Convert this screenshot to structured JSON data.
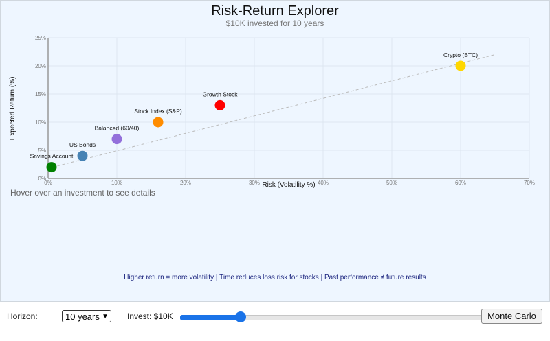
{
  "header": {
    "title": "Risk-Return Explorer",
    "subtitle": "$10K invested for 10 years"
  },
  "hint": "Hover over an investment to see details",
  "footnote": "Higher return = more volatility  |  Time reduces loss risk for stocks  |  Past performance ≠ future results",
  "controls": {
    "horizon_label": "Horizon:",
    "horizon_value": "10 years",
    "invest_label": "Invest: $10K",
    "invest_slider_fraction": 0.2,
    "monte_carlo_label": "Monte Carlo"
  },
  "chart_data": {
    "type": "scatter",
    "xlabel": "Risk (Volatility %)",
    "ylabel": "Expected Return (%)",
    "xlim": [
      0,
      70
    ],
    "ylim": [
      0,
      25
    ],
    "x_ticks": [
      0,
      10,
      20,
      30,
      40,
      50,
      60,
      70
    ],
    "y_ticks": [
      0,
      5,
      10,
      15,
      20,
      25
    ],
    "x_tick_labels": [
      "0%",
      "10%",
      "20%",
      "30%",
      "40%",
      "50%",
      "60%",
      "70%"
    ],
    "y_tick_labels": [
      "0%",
      "5%",
      "10%",
      "15%",
      "20%",
      "25%"
    ],
    "grid": true,
    "trend_line": {
      "x": [
        0,
        65
      ],
      "y": [
        1.8,
        22
      ]
    },
    "points": [
      {
        "name": "Savings Account",
        "x": 0.5,
        "y": 2,
        "color": "#008000"
      },
      {
        "name": "US Bonds",
        "x": 5,
        "y": 4,
        "color": "#4682b4"
      },
      {
        "name": "Balanced (60/40)",
        "x": 10,
        "y": 7,
        "color": "#9370db"
      },
      {
        "name": "Stock Index (S&P)",
        "x": 16,
        "y": 10,
        "color": "#ff8c00"
      },
      {
        "name": "Growth Stock",
        "x": 25,
        "y": 13,
        "color": "#ff0000"
      },
      {
        "name": "Crypto (BTC)",
        "x": 60,
        "y": 20,
        "color": "#ffd700"
      }
    ]
  }
}
